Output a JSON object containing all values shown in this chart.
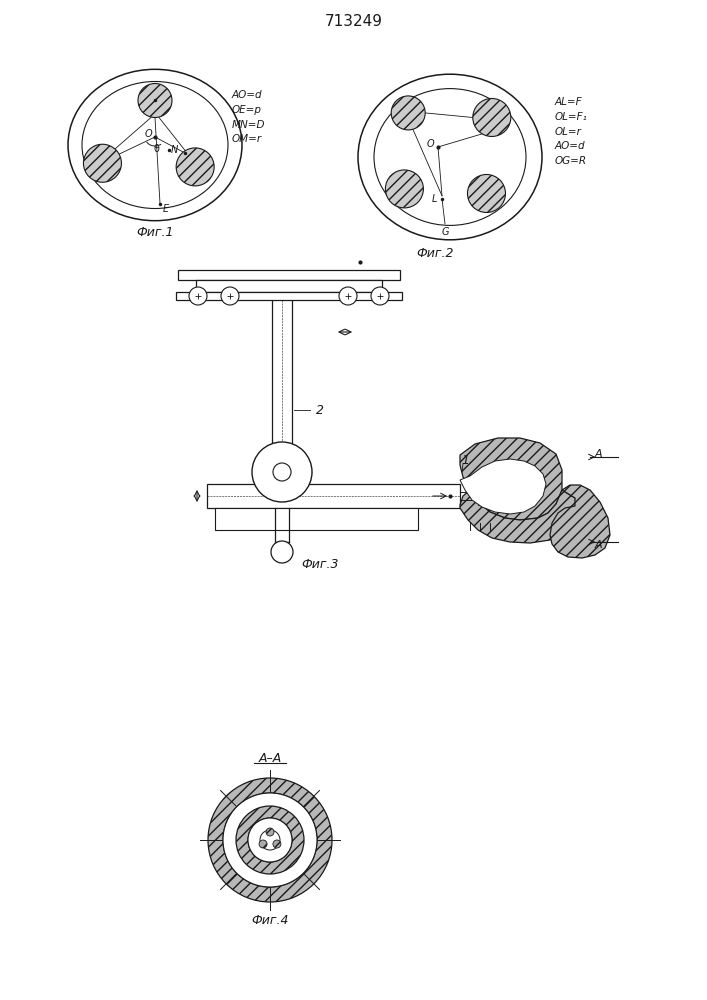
{
  "title": "713249",
  "bg_color": "#ffffff",
  "line_color": "#1a1a1a",
  "fig1_label": "Фиг.1",
  "fig2_label": "Фиг.2",
  "fig3_label": "Фиг.3",
  "fig4_label": "Фиг.4",
  "fig1_text": "AO=d\nOE=p\nMN=D\nOM=r",
  "fig2_text": "AL=F\nOL=F₁\nOL=r\nAO=d\nOG=R",
  "section_label": "A–A"
}
